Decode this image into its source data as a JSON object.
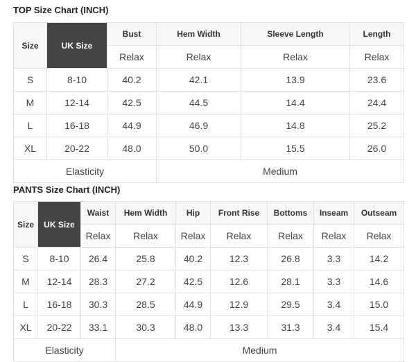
{
  "top": {
    "title": "TOP Size Chart (INCH)",
    "size_header": "Size",
    "uk_header": "UK Size",
    "columns": [
      "Bust",
      "Hem Width",
      "Sleeve Length",
      "Length"
    ],
    "sub_label": "Relax",
    "rows": [
      {
        "size": "S",
        "uk": "8-10",
        "values": [
          "40.2",
          "42.1",
          "13.9",
          "23.6"
        ]
      },
      {
        "size": "M",
        "uk": "12-14",
        "values": [
          "42.5",
          "44.5",
          "14.4",
          "24.4"
        ]
      },
      {
        "size": "L",
        "uk": "16-18",
        "values": [
          "44.9",
          "46.9",
          "14.8",
          "25.2"
        ]
      },
      {
        "size": "XL",
        "uk": "20-22",
        "values": [
          "48.0",
          "50.0",
          "15.5",
          "26.0"
        ]
      }
    ],
    "elasticity_label": "Elasticity",
    "elasticity_value": "Medium"
  },
  "pants": {
    "title": "PANTS Size Chart (INCH)",
    "size_header": "Size",
    "uk_header": "UK Size",
    "columns": [
      "Waist",
      "Hem Width",
      "Hip",
      "Front Rise",
      "Bottoms",
      "Inseam",
      "Outseam"
    ],
    "sub_label": "Relax",
    "rows": [
      {
        "size": "S",
        "uk": "8-10",
        "values": [
          "26.4",
          "25.8",
          "40.2",
          "12.3",
          "26.8",
          "3.3",
          "14.2"
        ]
      },
      {
        "size": "M",
        "uk": "12-14",
        "values": [
          "28.3",
          "27.2",
          "42.5",
          "12.6",
          "28.1",
          "3.3",
          "14.6"
        ]
      },
      {
        "size": "L",
        "uk": "16-18",
        "values": [
          "30.3",
          "28.5",
          "44.9",
          "12.9",
          "29.5",
          "3.4",
          "15.0"
        ]
      },
      {
        "size": "XL",
        "uk": "20-22",
        "values": [
          "33.1",
          "30.3",
          "48.0",
          "13.3",
          "31.3",
          "3.4",
          "15.4"
        ]
      }
    ],
    "elasticity_label": "Elasticity",
    "elasticity_value": "Medium"
  }
}
